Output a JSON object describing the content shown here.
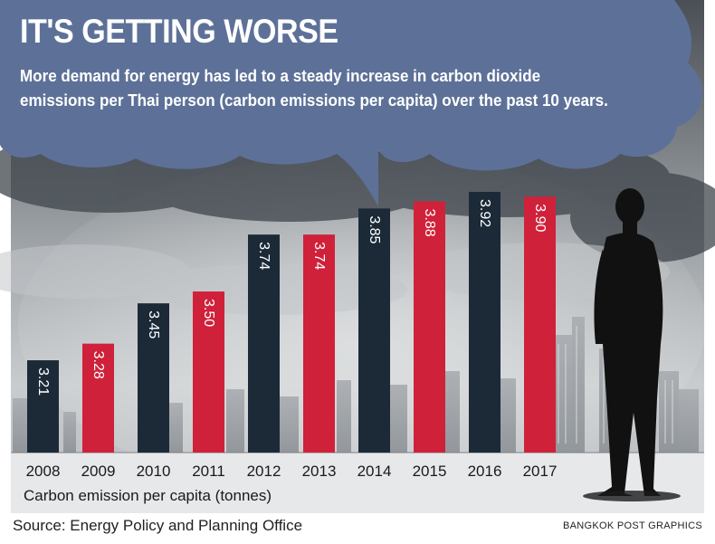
{
  "header": {
    "title": "IT'S GETTING WORSE",
    "subtitle": "More demand for energy has led to a steady increase in carbon dioxide emissions per Thai person (carbon emissions per capita) over the past 10 years."
  },
  "footer": {
    "source": "Source: Energy Policy and Planning Office",
    "credit": "BANGKOK POST GRAPHICS"
  },
  "colors": {
    "dark_bar": "#1c2a38",
    "red_bar": "#d0213a",
    "cloud": "#5d7198",
    "sky": "#c9ccce"
  },
  "chart_data": {
    "type": "bar",
    "title": "IT'S GETTING WORSE",
    "xlabel": "Carbon emission per capita (tonnes)",
    "ylabel": "",
    "categories": [
      "2008",
      "2009",
      "2010",
      "2011",
      "2012",
      "2013",
      "2014",
      "2015",
      "2016",
      "2017"
    ],
    "values": [
      3.21,
      3.28,
      3.45,
      3.5,
      3.74,
      3.74,
      3.85,
      3.88,
      3.92,
      3.9
    ],
    "labels": [
      "3.21",
      "3.28",
      "3.45",
      "3.50",
      "3.74",
      "3.74",
      "3.85",
      "3.88",
      "3.92",
      "3.90"
    ],
    "bar_colors": [
      "#1c2a38",
      "#d0213a",
      "#1c2a38",
      "#d0213a",
      "#1c2a38",
      "#d0213a",
      "#1c2a38",
      "#d0213a",
      "#1c2a38",
      "#d0213a"
    ],
    "grid": false,
    "legend": "none"
  }
}
